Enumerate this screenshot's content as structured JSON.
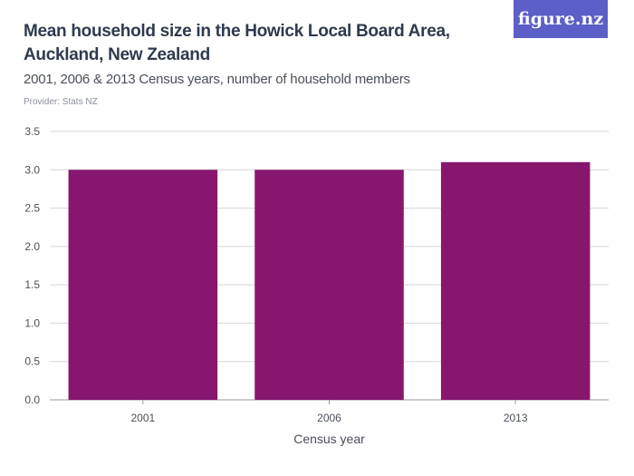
{
  "header": {
    "title": "Mean household size in the Howick Local Board Area, Auckland, New Zealand",
    "subtitle": "2001, 2006 & 2013 Census years, number of household members",
    "provider": "Provider: Stats NZ",
    "logo": "figure.nz"
  },
  "colors": {
    "bar": "#87166e",
    "grid": "#d5d5d5",
    "logo_bg": "#5b5fc7"
  },
  "chart_data": {
    "type": "bar",
    "categories": [
      "2001",
      "2006",
      "2013"
    ],
    "values": [
      3.0,
      3.0,
      3.1
    ],
    "title": "Mean household size in the Howick Local Board Area, Auckland, New Zealand",
    "subtitle": "2001, 2006 & 2013 Census years, number of household members",
    "xlabel": "Census year",
    "ylabel": "",
    "ylim": [
      0,
      3.5
    ],
    "yticks": [
      "0.0",
      "0.5",
      "1.0",
      "1.5",
      "2.0",
      "2.5",
      "3.0",
      "3.5"
    ],
    "grid": true,
    "legend": "none"
  }
}
